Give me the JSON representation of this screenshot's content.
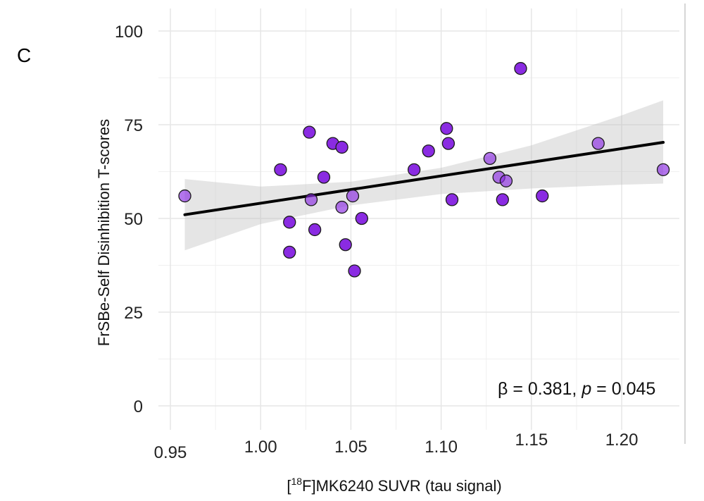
{
  "panel_label": "C",
  "annotation": {
    "beta_text": "β = 0.381, ",
    "p_symbol": "p",
    "p_text": " = 0.045"
  },
  "chart_data": {
    "type": "scatter",
    "title": "",
    "xlabel": "[18F]MK6240 SUVR (tau signal)",
    "xlabel_prefix": "[",
    "xlabel_superscript": "18",
    "xlabel_rest": "F]MK6240 SUVR (tau signal)",
    "ylabel": "FrSBe-Self Disinhibition T-scores",
    "xlim": [
      0.95,
      1.23
    ],
    "ylim": [
      0,
      100
    ],
    "x_ticks": [
      0.95,
      1.0,
      1.05,
      1.1,
      1.15,
      1.2
    ],
    "x_tick_labels": [
      "0.95",
      "1.00",
      "1.05",
      "1.10",
      "1.15",
      "1.20"
    ],
    "y_ticks": [
      0,
      25,
      50,
      75,
      100
    ],
    "y_tick_labels": [
      "0",
      "25",
      "50",
      "75",
      "100"
    ],
    "grid": true,
    "point_color": "#8a2be2",
    "regression_line": {
      "x": [
        0.958,
        1.223
      ],
      "y": [
        51.0,
        70.3
      ]
    },
    "confidence_band": {
      "x": [
        0.958,
        1.0,
        1.05,
        1.1,
        1.15,
        1.2,
        1.223
      ],
      "lower": [
        41.5,
        48.5,
        53.5,
        56.5,
        58.0,
        59.0,
        59.3
      ],
      "upper": [
        60.5,
        58.5,
        59.8,
        63.5,
        69.5,
        77.5,
        81.5
      ]
    },
    "points": [
      {
        "x": 0.958,
        "y": 56
      },
      {
        "x": 1.011,
        "y": 63
      },
      {
        "x": 1.016,
        "y": 49
      },
      {
        "x": 1.016,
        "y": 41
      },
      {
        "x": 1.027,
        "y": 73
      },
      {
        "x": 1.028,
        "y": 55
      },
      {
        "x": 1.03,
        "y": 47
      },
      {
        "x": 1.035,
        "y": 61
      },
      {
        "x": 1.04,
        "y": 70
      },
      {
        "x": 1.045,
        "y": 69
      },
      {
        "x": 1.045,
        "y": 53
      },
      {
        "x": 1.047,
        "y": 43
      },
      {
        "x": 1.051,
        "y": 56
      },
      {
        "x": 1.052,
        "y": 36
      },
      {
        "x": 1.056,
        "y": 50
      },
      {
        "x": 1.085,
        "y": 63
      },
      {
        "x": 1.093,
        "y": 68
      },
      {
        "x": 1.103,
        "y": 74
      },
      {
        "x": 1.104,
        "y": 70
      },
      {
        "x": 1.106,
        "y": 55
      },
      {
        "x": 1.127,
        "y": 66
      },
      {
        "x": 1.132,
        "y": 61
      },
      {
        "x": 1.134,
        "y": 55
      },
      {
        "x": 1.136,
        "y": 60
      },
      {
        "x": 1.144,
        "y": 90
      },
      {
        "x": 1.156,
        "y": 56
      },
      {
        "x": 1.187,
        "y": 70
      },
      {
        "x": 1.223,
        "y": 63
      }
    ]
  }
}
